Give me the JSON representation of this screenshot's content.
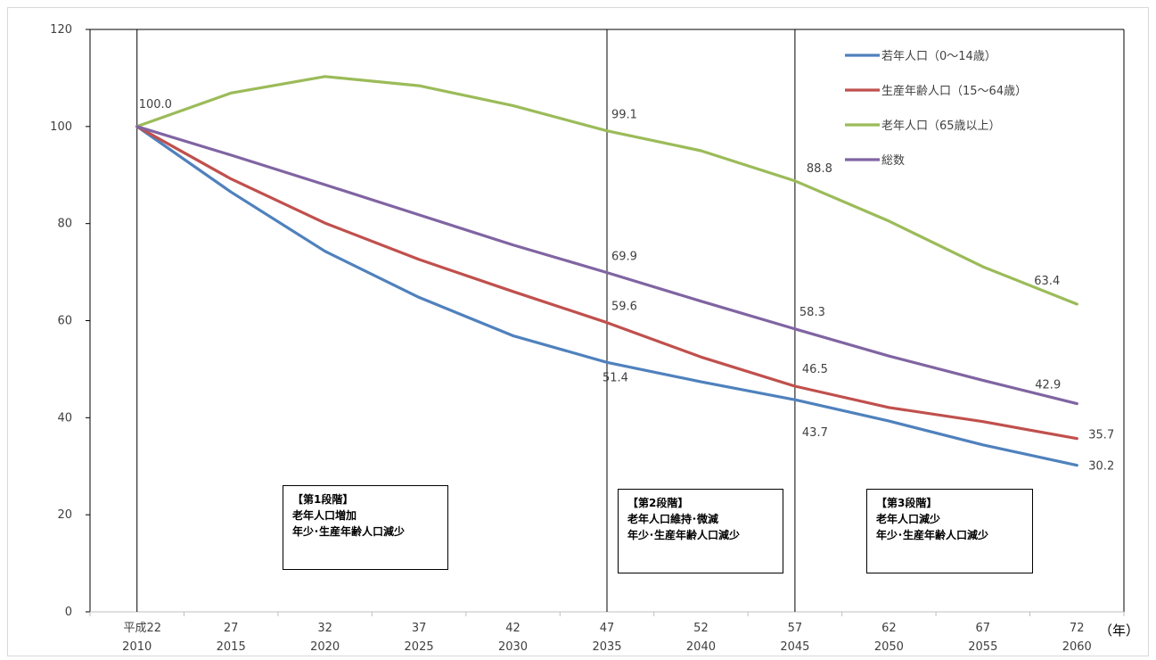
{
  "chart_data": {
    "type": "line",
    "title": "",
    "xlabel": "",
    "ylabel": "",
    "x_unit": "（年）",
    "categories": [
      "2010",
      "2015",
      "2020",
      "2025",
      "2030",
      "2035",
      "2040",
      "2045",
      "2050",
      "2055",
      "2060"
    ],
    "x_tick_labels": [
      {
        "era": "平成22",
        "year": "2010"
      },
      {
        "era": "27",
        "year": "2015"
      },
      {
        "era": "32",
        "year": "2020"
      },
      {
        "era": "37",
        "year": "2025"
      },
      {
        "era": "42",
        "year": "2030"
      },
      {
        "era": "47",
        "year": "2035"
      },
      {
        "era": "52",
        "year": "2040"
      },
      {
        "era": "57",
        "year": "2045"
      },
      {
        "era": "62",
        "year": "2050"
      },
      {
        "era": "67",
        "year": "2055"
      },
      {
        "era": "72",
        "year": "2060"
      }
    ],
    "ylim": [
      0,
      120
    ],
    "y_ticks": [
      0,
      20,
      40,
      60,
      80,
      100,
      120
    ],
    "grid": false,
    "legend_position": "top-right",
    "series": [
      {
        "name": "若年人口（0～14歳）",
        "color": "#4f81bd",
        "values": [
          100.0,
          86.5,
          74.3,
          64.8,
          56.9,
          51.4,
          47.4,
          43.7,
          39.3,
          34.4,
          30.2
        ]
      },
      {
        "name": "生産年齢人口（15～64歳）",
        "color": "#c0504d",
        "values": [
          100.0,
          89.2,
          80.1,
          72.6,
          66.0,
          59.6,
          52.5,
          46.5,
          42.1,
          39.2,
          35.7
        ]
      },
      {
        "name": "老年人口（65歳以上）",
        "color": "#9bbb59",
        "values": [
          100.0,
          106.9,
          110.3,
          108.4,
          104.3,
          99.1,
          95.0,
          88.8,
          80.5,
          71.1,
          63.4
        ]
      },
      {
        "name": "総数",
        "color": "#8064a2",
        "values": [
          100.0,
          94.1,
          88.0,
          81.8,
          75.6,
          69.9,
          64.0,
          58.3,
          52.7,
          47.7,
          42.9
        ]
      }
    ],
    "data_labels": [
      {
        "text": "100.0",
        "series": 0,
        "index": 0
      },
      {
        "text": "99.1",
        "series": 2,
        "index": 5
      },
      {
        "text": "69.9",
        "series": 3,
        "index": 5
      },
      {
        "text": "59.6",
        "series": 1,
        "index": 5
      },
      {
        "text": "51.4",
        "series": 0,
        "index": 5
      },
      {
        "text": "88.8",
        "series": 2,
        "index": 7
      },
      {
        "text": "58.3",
        "series": 3,
        "index": 7
      },
      {
        "text": "46.5",
        "series": 1,
        "index": 7
      },
      {
        "text": "43.7",
        "series": 0,
        "index": 7
      },
      {
        "text": "63.4",
        "series": 2,
        "index": 10
      },
      {
        "text": "42.9",
        "series": 3,
        "index": 10
      },
      {
        "text": "35.7",
        "series": 1,
        "index": 10
      },
      {
        "text": "30.2",
        "series": 0,
        "index": 10
      }
    ],
    "stage_dividers_at": [
      "2010",
      "2035",
      "2045"
    ]
  },
  "stages": [
    {
      "title": "【第1段階】",
      "line1": "老年人口増加",
      "line2": "年少･生産年齢人口減少"
    },
    {
      "title": "【第2段階】",
      "line1": "老年人口維持･微減",
      "line2": "年少･生産年齢人口減少"
    },
    {
      "title": "【第3段階】",
      "line1": "老年人口減少",
      "line2": "年少･生産年齢人口減少"
    }
  ]
}
